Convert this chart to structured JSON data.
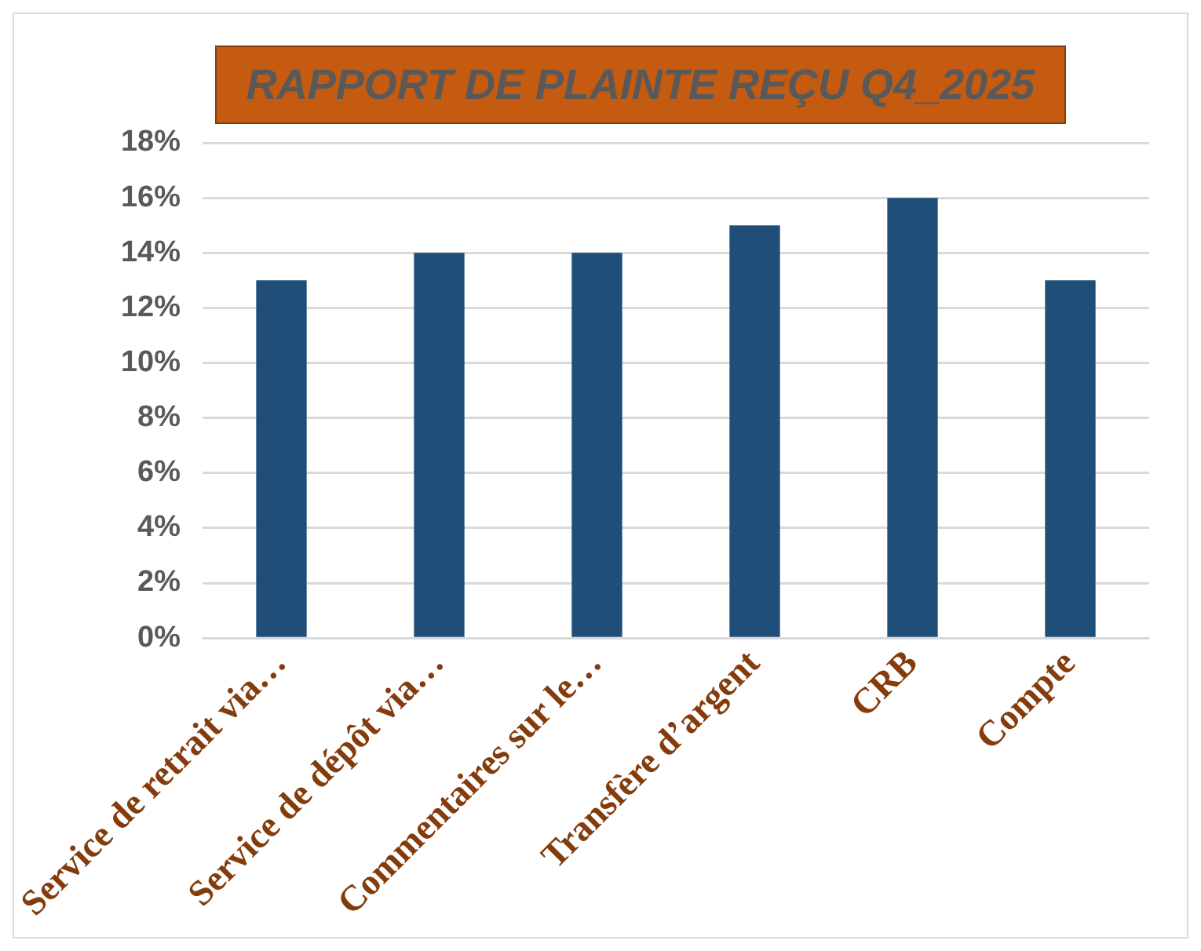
{
  "chart_data": {
    "type": "bar",
    "title": "RAPPORT DE PLAINTE REÇU Q4_2025",
    "categories": [
      "Service de retrait via…",
      "Service de dépôt via…",
      "Commentaires sur le…",
      "Transfère d’argent",
      "CRB",
      "Compte"
    ],
    "values": [
      13,
      14,
      14,
      15,
      16,
      13
    ],
    "color": "#1f4e79",
    "ylim": [
      0,
      18
    ],
    "yticks": [
      {
        "value": 0,
        "label": "0%"
      },
      {
        "value": 2,
        "label": "2%"
      },
      {
        "value": 4,
        "label": "4%"
      },
      {
        "value": 6,
        "label": "6%"
      },
      {
        "value": 8,
        "label": "8%"
      },
      {
        "value": 10,
        "label": "10%"
      },
      {
        "value": 12,
        "label": "12%"
      },
      {
        "value": 14,
        "label": "14%"
      },
      {
        "value": 16,
        "label": "16%"
      },
      {
        "value": 18,
        "label": "18%"
      }
    ],
    "grid": "y",
    "legend": false
  }
}
